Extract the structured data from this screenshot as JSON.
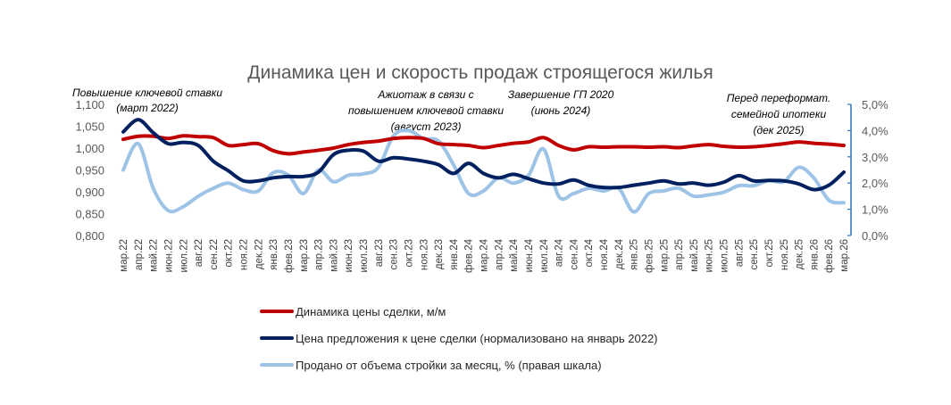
{
  "chart_data": {
    "type": "line",
    "title": "Динамика цен и скорость продаж строящегося жилья",
    "categories": [
      "мар.22",
      "апр.22",
      "май.22",
      "июн.22",
      "июл.22",
      "авг.22",
      "сен.22",
      "окт.22",
      "ноя.22",
      "дек.22",
      "янв.23",
      "фев.23",
      "мар.23",
      "апр.23",
      "май.23",
      "июн.23",
      "июл.23",
      "авг.23",
      "сен.23",
      "окт.23",
      "ноя.23",
      "дек.23",
      "янв.24",
      "фев.24",
      "мар.24",
      "апр.24",
      "май.24",
      "июн.24",
      "июл.24",
      "авг.24",
      "сен.24",
      "окт.24",
      "ноя.24",
      "дек.24",
      "янв.25",
      "фев.25",
      "мар.25",
      "апр.25",
      "май.25",
      "июн.25",
      "июл.25",
      "авг.25",
      "сен.25",
      "окт.25",
      "ноя.25",
      "дек.25",
      "янв.26",
      "фев.26",
      "мар.26"
    ],
    "left_axis": {
      "ylim": [
        0.8,
        1.1
      ],
      "ticks": [
        "1,100",
        "1,050",
        "1,000",
        "0,950",
        "0,900",
        "0,850",
        "0,800"
      ]
    },
    "right_axis": {
      "ylim": [
        0,
        5
      ],
      "ticks": [
        "5,0%",
        "4,0%",
        "3,0%",
        "2,0%",
        "1,0%",
        "0,0%"
      ]
    },
    "series": [
      {
        "name": "Динамика цены сделки, м/м",
        "axis": "left",
        "color": "#c00000",
        "values": [
          1.02,
          1.027,
          1.027,
          1.022,
          1.028,
          1.026,
          1.024,
          1.006,
          1.008,
          1.01,
          0.994,
          0.987,
          0.991,
          0.995,
          1.0,
          1.008,
          1.013,
          1.016,
          1.022,
          1.024,
          1.022,
          1.01,
          1.008,
          1.006,
          1.001,
          1.006,
          1.011,
          1.014,
          1.024,
          1.006,
          0.996,
          1.003,
          1.002,
          1.003,
          1.003,
          1.002,
          1.003,
          1.001,
          1.005,
          1.008,
          1.004,
          1.002,
          1.003,
          1.006,
          1.01,
          1.014,
          1.011,
          1.009,
          1.006
        ]
      },
      {
        "name": "Цена предложения к цене сделки (нормализовано на январь 2022)",
        "axis": "left",
        "color": "#002060",
        "values": [
          1.037,
          1.065,
          1.035,
          1.01,
          1.013,
          1.006,
          0.97,
          0.948,
          0.925,
          0.925,
          0.932,
          0.935,
          0.935,
          0.945,
          0.985,
          0.995,
          0.993,
          0.97,
          0.978,
          0.975,
          0.97,
          0.962,
          0.942,
          0.965,
          0.942,
          0.932,
          0.94,
          0.93,
          0.92,
          0.918,
          0.927,
          0.915,
          0.91,
          0.91,
          0.915,
          0.92,
          0.925,
          0.918,
          0.92,
          0.915,
          0.922,
          0.937,
          0.925,
          0.926,
          0.925,
          0.918,
          0.905,
          0.915,
          0.945
        ]
      },
      {
        "name": "Продано от объема стройки за месяц, % (правая шкала)",
        "axis": "right",
        "color": "#9dc3e6",
        "values": [
          2.5,
          3.5,
          1.8,
          0.95,
          1.1,
          1.5,
          1.8,
          2.0,
          1.75,
          1.7,
          2.4,
          2.3,
          1.6,
          2.5,
          2.05,
          2.3,
          2.35,
          2.6,
          3.8,
          4.0,
          3.7,
          3.6,
          2.7,
          1.6,
          1.7,
          2.2,
          2.0,
          2.3,
          3.3,
          1.5,
          1.6,
          1.8,
          1.7,
          1.8,
          0.9,
          1.6,
          1.7,
          1.8,
          1.5,
          1.55,
          1.65,
          1.9,
          1.9,
          2.1,
          2.05,
          2.6,
          2.2,
          1.35,
          1.25
        ]
      }
    ],
    "annotations": [
      {
        "lines": [
          "Повышение ключевой ставки",
          "(март 2022)"
        ]
      },
      {
        "lines": [
          "Ажиотаж в связи с",
          "повышением ключевой ставки",
          "(август 2023)"
        ]
      },
      {
        "lines": [
          "Завершение ГП 2020",
          "(июнь 2024)"
        ]
      },
      {
        "lines": [
          "Перед переформат.",
          "семейной ипотеки",
          "(дек 2025)"
        ]
      }
    ],
    "legend_position": "bottom",
    "grid": false
  }
}
